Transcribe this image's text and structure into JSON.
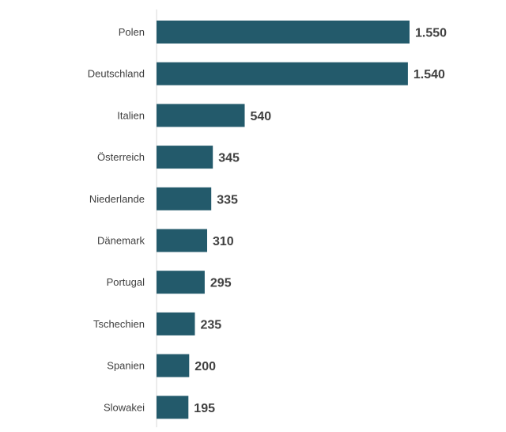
{
  "chart_data": {
    "type": "bar",
    "orientation": "horizontal",
    "categories": [
      "Polen",
      "Deutschland",
      "Italien",
      "Österreich",
      "Niederlande",
      "Dänemark",
      "Portugal",
      "Tschechien",
      "Spanien",
      "Slowakei"
    ],
    "values": [
      1550,
      1540,
      540,
      345,
      335,
      310,
      295,
      235,
      200,
      195
    ],
    "value_labels": [
      "1.550",
      "1.540",
      "540",
      "345",
      "335",
      "310",
      "295",
      "235",
      "200",
      "195"
    ],
    "xlim": [
      0,
      1550
    ],
    "grid": false,
    "legend": "none",
    "bar_color": "#235a6b",
    "label_color": "#404040",
    "axis_color": "#d9d9d9"
  }
}
